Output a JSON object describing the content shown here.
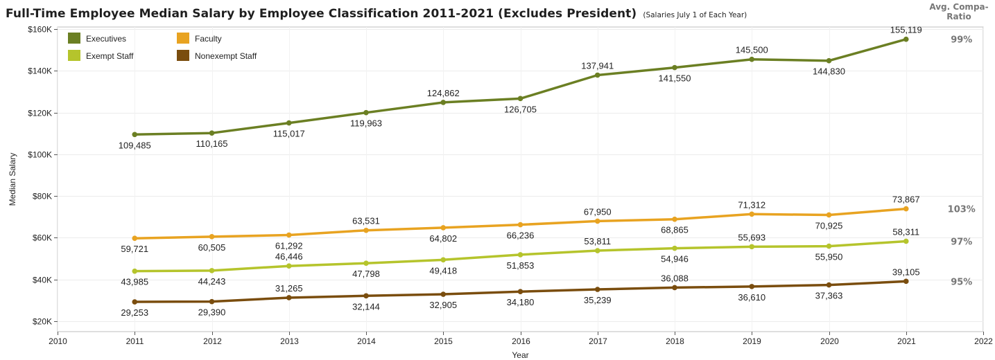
{
  "title": "Full-Time Employee Median Salary by Employee Classification 2011-2021 (Excludes President)",
  "subtitle": "(Salaries July 1 of Each Year)",
  "compa_header": "Avg. Compa-Ratio",
  "chart_data": {
    "type": "line",
    "xlabel": "Year",
    "ylabel": "Median Salary",
    "x_ticks": [
      "2010",
      "2011",
      "2012",
      "2013",
      "2014",
      "2015",
      "2016",
      "2017",
      "2018",
      "2019",
      "2020",
      "2021",
      "2022"
    ],
    "x": [
      2011,
      2012,
      2013,
      2014,
      2015,
      2016,
      2017,
      2018,
      2019,
      2020,
      2021
    ],
    "xlim": [
      2010,
      2022
    ],
    "ylim": [
      15000,
      161000
    ],
    "y_ticks": [
      {
        "value": 20000,
        "label": "$20K"
      },
      {
        "value": 40000,
        "label": "$40K"
      },
      {
        "value": 60000,
        "label": "$60K"
      },
      {
        "value": 80000,
        "label": "$80K"
      },
      {
        "value": 100000,
        "label": "$100K"
      },
      {
        "value": 120000,
        "label": "$120K"
      },
      {
        "value": 140000,
        "label": "$140K"
      },
      {
        "value": 160000,
        "label": "$160K"
      }
    ],
    "grid": true,
    "legend_position": "top-left",
    "series": [
      {
        "name": "Executives",
        "color": "#6b7f23",
        "values": [
          109485,
          110165,
          115017,
          119963,
          124862,
          126705,
          137941,
          141550,
          145500,
          144830,
          155119
        ],
        "labels": [
          "109,485",
          "110,165",
          "115,017",
          "119,963",
          "124,862",
          "126,705",
          "137,941",
          "141,550",
          "145,500",
          "144,830",
          "155,119"
        ],
        "label_positions": [
          "below",
          "below",
          "below",
          "below",
          "above",
          "below",
          "above",
          "below",
          "above",
          "below",
          "above"
        ],
        "compa_ratio": "99%"
      },
      {
        "name": "Faculty",
        "color": "#e8a321",
        "values": [
          59721,
          60505,
          61292,
          63531,
          64802,
          66236,
          67950,
          68865,
          71312,
          70925,
          73867
        ],
        "labels": [
          "59,721",
          "60,505",
          "61,292",
          "63,531",
          "64,802",
          "66,236",
          "67,950",
          "68,865",
          "71,312",
          "70,925",
          "73,867"
        ],
        "label_positions": [
          "below",
          "below",
          "below",
          "above",
          "below",
          "below",
          "above",
          "below",
          "above",
          "below",
          "above"
        ],
        "compa_ratio": "103%"
      },
      {
        "name": "Exempt Staff",
        "color": "#b5c42c",
        "values": [
          43985,
          44243,
          46446,
          47798,
          49418,
          51853,
          53811,
          54946,
          55693,
          55950,
          58311
        ],
        "labels": [
          "43,985",
          "44,243",
          "46,446",
          "47,798",
          "49,418",
          "51,853",
          "53,811",
          "54,946",
          "55,693",
          "55,950",
          "58,311"
        ],
        "label_positions": [
          "below",
          "below",
          "above",
          "below",
          "below",
          "below",
          "above",
          "below",
          "above",
          "below",
          "above"
        ],
        "compa_ratio": "97%"
      },
      {
        "name": "Nonexempt Staff",
        "color": "#7a4d0e",
        "values": [
          29253,
          29390,
          31265,
          32144,
          32905,
          34180,
          35239,
          36088,
          36610,
          37363,
          39105
        ],
        "labels": [
          "29,253",
          "29,390",
          "31,265",
          "32,144",
          "32,905",
          "34,180",
          "35,239",
          "36,088",
          "36,610",
          "37,363",
          "39,105"
        ],
        "label_positions": [
          "below",
          "below",
          "above",
          "below",
          "below",
          "below",
          "below",
          "above",
          "below",
          "below",
          "above"
        ],
        "compa_ratio": "95%"
      }
    ]
  }
}
